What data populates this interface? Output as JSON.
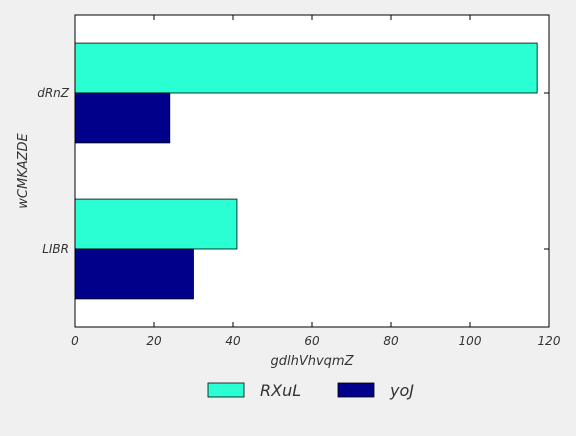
{
  "chart_data": {
    "type": "bar",
    "orientation": "horizontal",
    "categories": [
      "LIBR",
      "dRnZ"
    ],
    "series": [
      {
        "name": "RXuL",
        "values": [
          41,
          117
        ],
        "color": "#2affd3"
      },
      {
        "name": "yoJ",
        "values": [
          30,
          24
        ],
        "color": "#00008b"
      }
    ],
    "xlabel": "gdlhVhvqmZ",
    "ylabel": "wCMKAZDE",
    "xlim": [
      0,
      120
    ],
    "xticks": [
      0,
      20,
      40,
      60,
      80,
      100,
      120
    ],
    "grid": false,
    "legend_position": "bottom"
  }
}
